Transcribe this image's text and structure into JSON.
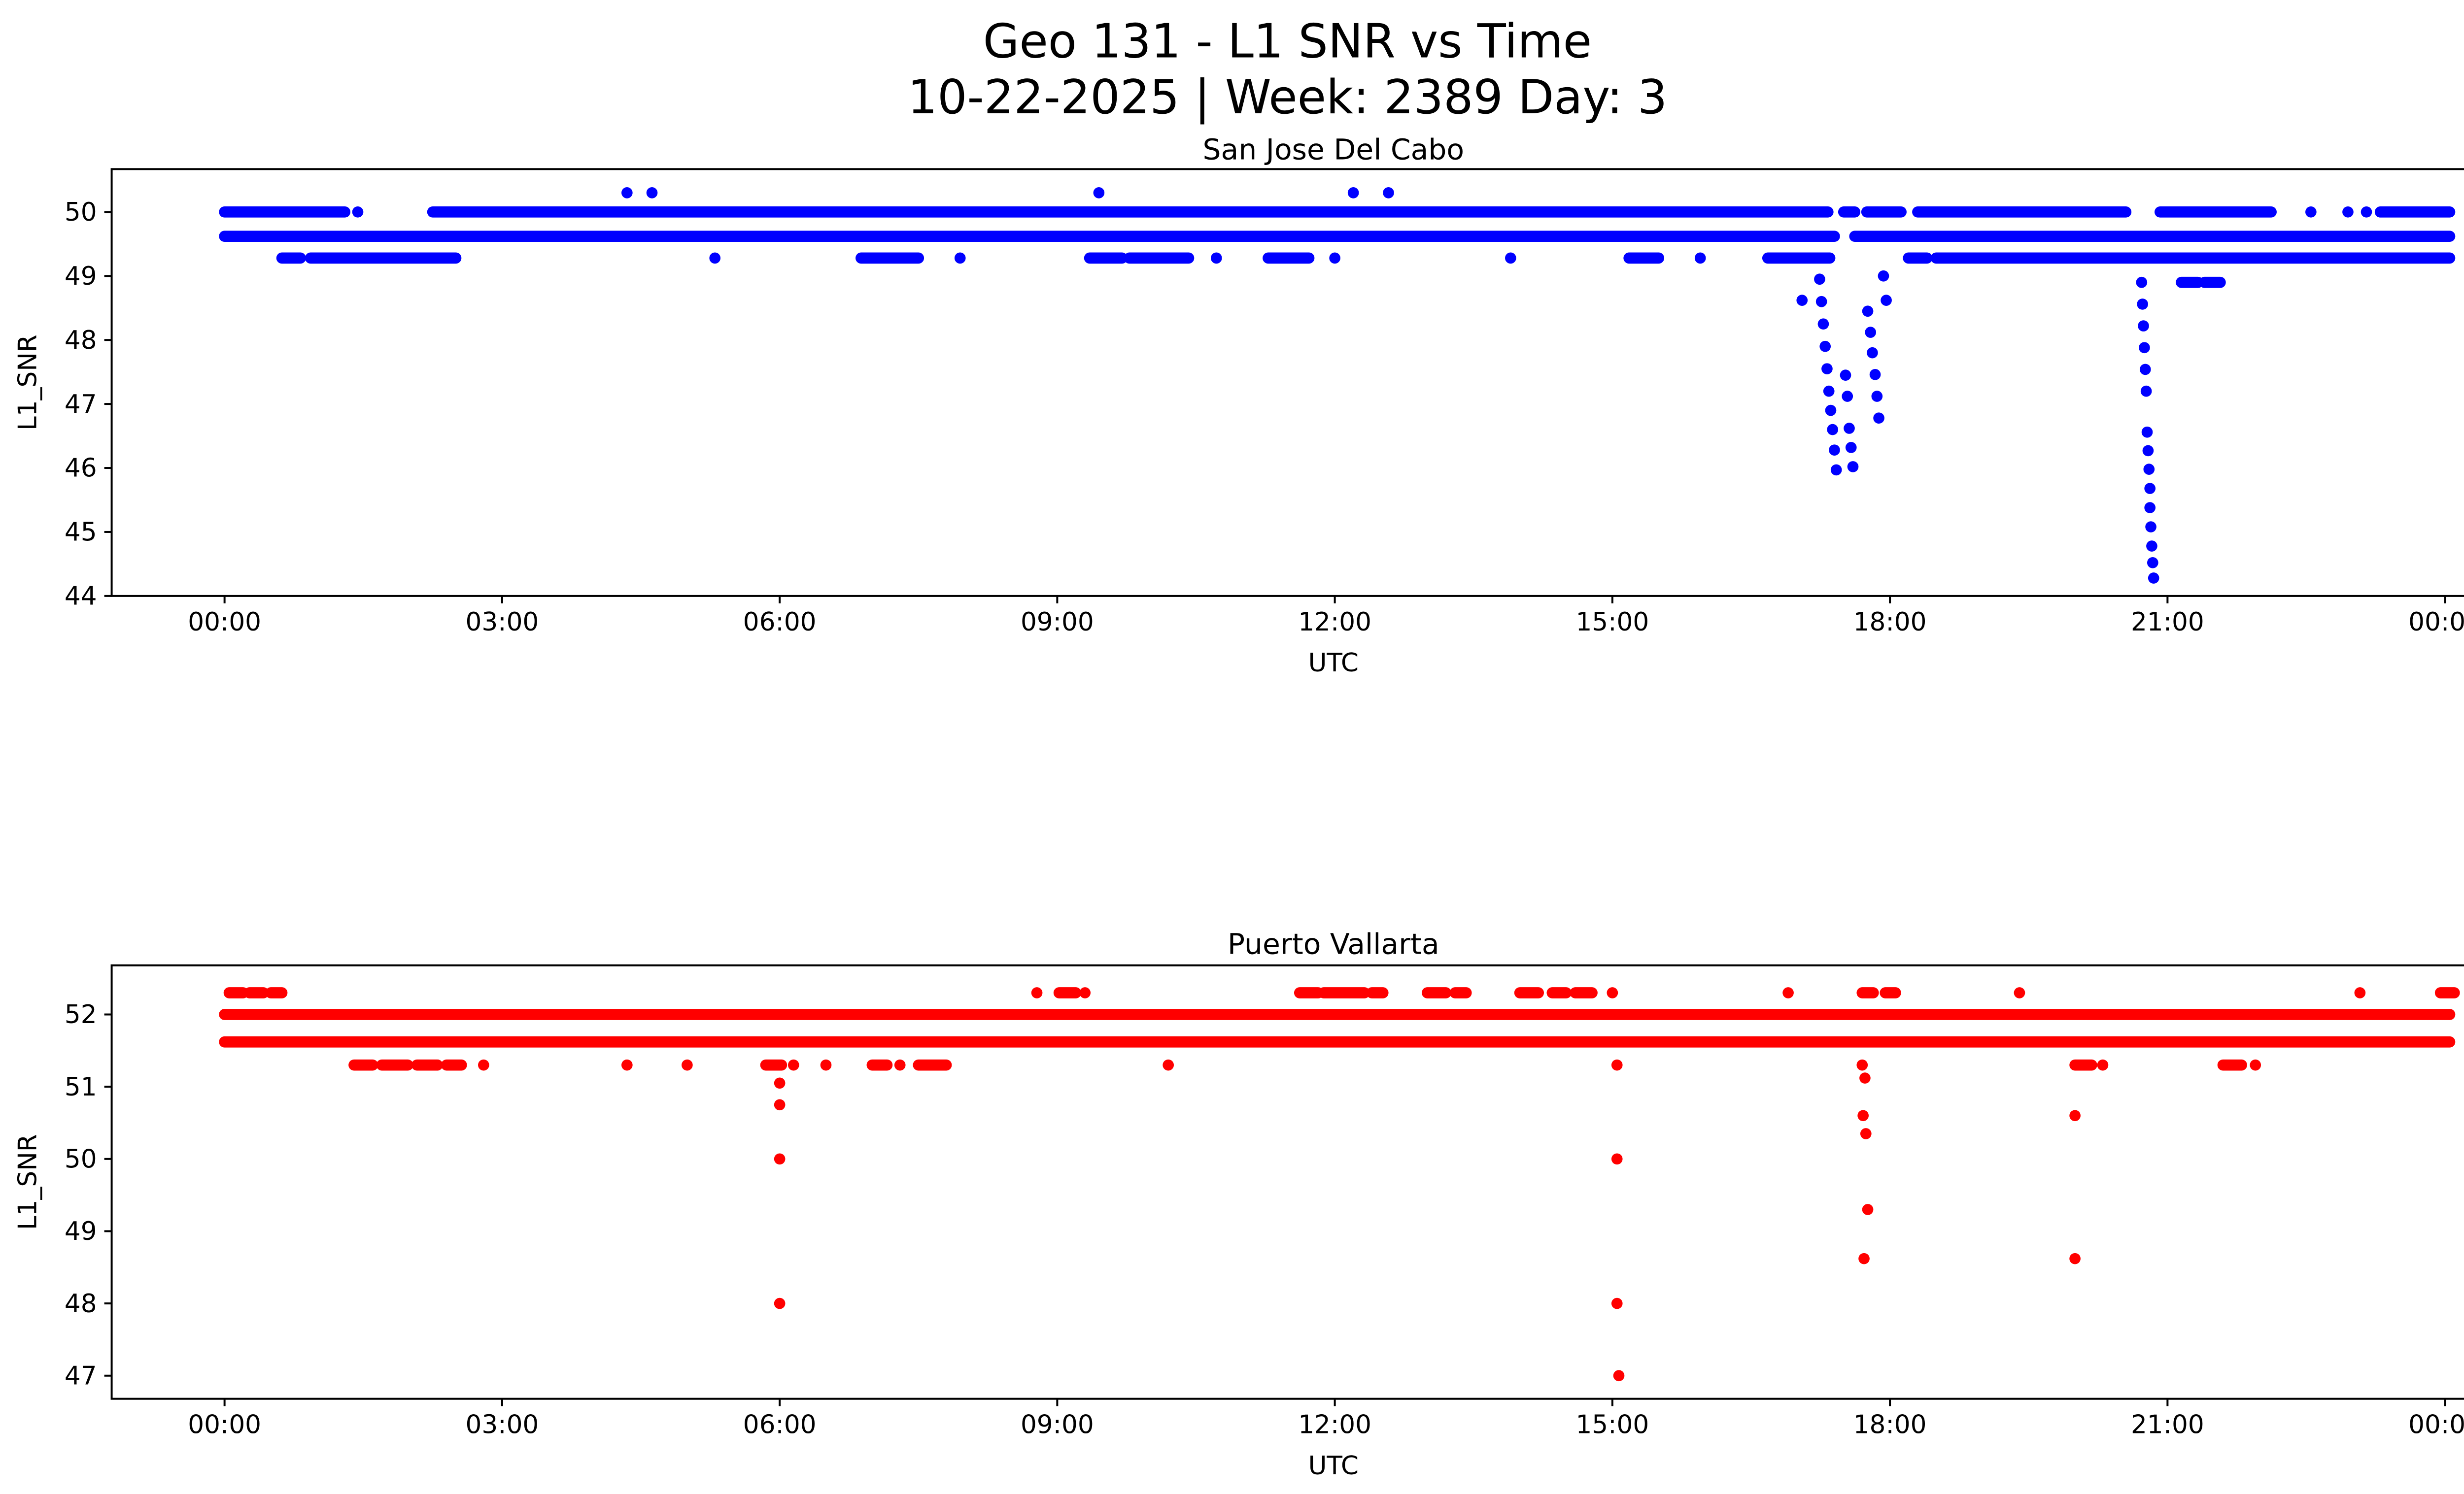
{
  "title": "Geo 131 - L1 SNR vs Time",
  "subtitle": "10-22-2025 | Week: 2389 Day: 3",
  "style": {
    "background": "#ffffff",
    "text_color": "#000000"
  },
  "chart_data": [
    {
      "type": "scatter",
      "title": "San Jose Del Cabo",
      "xlabel": "UTC",
      "ylabel": "L1_SNR",
      "color": "#0000FF",
      "marker_radius": 3.4,
      "grid": false,
      "xlim": [
        -1.22,
        25.19
      ],
      "ylim": [
        44.0,
        50.67
      ],
      "xticks": [
        0,
        3,
        6,
        9,
        12,
        15,
        18,
        21,
        24
      ],
      "xtick_labels": [
        "00:00",
        "03:00",
        "06:00",
        "09:00",
        "12:00",
        "15:00",
        "18:00",
        "21:00",
        "00:00"
      ],
      "yticks": [
        44,
        45,
        46,
        47,
        48,
        49,
        50
      ],
      "ytick_labels": [
        "44",
        "45",
        "46",
        "47",
        "48",
        "49",
        "50"
      ],
      "bands": [
        {
          "y": 50.0,
          "segments": [
            [
              0.0,
              1.3
            ],
            [
              2.25,
              17.33
            ],
            [
              17.5,
              17.62
            ],
            [
              17.75,
              18.12
            ],
            [
              18.3,
              20.55
            ],
            [
              20.92,
              22.12
            ],
            [
              23.3,
              24.05
            ]
          ]
        },
        {
          "y": 49.62,
          "segments": [
            [
              0.0,
              17.4
            ],
            [
              17.62,
              24.05
            ]
          ]
        },
        {
          "y": 49.28,
          "segments": [
            [
              0.62,
              0.82
            ],
            [
              0.93,
              2.5
            ],
            [
              6.88,
              7.5
            ],
            [
              9.35,
              9.7
            ],
            [
              9.78,
              10.42
            ],
            [
              11.28,
              11.72
            ],
            [
              15.18,
              15.5
            ],
            [
              16.68,
              17.35
            ],
            [
              18.2,
              18.4
            ],
            [
              18.5,
              24.05
            ]
          ]
        },
        {
          "y": 48.9,
          "segments": [
            [
              21.15,
              21.33
            ],
            [
              21.4,
              21.57
            ]
          ]
        }
      ],
      "points": [
        [
          1.44,
          50.0
        ],
        [
          22.55,
          50.0
        ],
        [
          22.95,
          50.0
        ],
        [
          23.15,
          50.0
        ],
        [
          4.35,
          50.3
        ],
        [
          4.62,
          50.3
        ],
        [
          9.45,
          50.3
        ],
        [
          12.2,
          50.3
        ],
        [
          12.58,
          50.3
        ],
        [
          5.3,
          49.28
        ],
        [
          7.95,
          49.28
        ],
        [
          10.72,
          49.28
        ],
        [
          12.0,
          49.28
        ],
        [
          13.9,
          49.28
        ],
        [
          15.95,
          49.28
        ],
        [
          17.05,
          48.62
        ],
        [
          17.24,
          48.95
        ],
        [
          17.26,
          48.6
        ],
        [
          17.28,
          48.25
        ],
        [
          17.3,
          47.9
        ],
        [
          17.32,
          47.55
        ],
        [
          17.34,
          47.2
        ],
        [
          17.36,
          46.9
        ],
        [
          17.38,
          46.6
        ],
        [
          17.4,
          46.28
        ],
        [
          17.42,
          45.97
        ],
        [
          17.52,
          47.45
        ],
        [
          17.54,
          47.12
        ],
        [
          17.56,
          46.62
        ],
        [
          17.58,
          46.32
        ],
        [
          17.6,
          46.02
        ],
        [
          17.76,
          48.45
        ],
        [
          17.79,
          48.12
        ],
        [
          17.81,
          47.8
        ],
        [
          17.84,
          47.46
        ],
        [
          17.86,
          47.12
        ],
        [
          17.88,
          46.78
        ],
        [
          17.93,
          49.0
        ],
        [
          17.96,
          48.62
        ],
        [
          20.72,
          48.9
        ],
        [
          20.73,
          48.56
        ],
        [
          20.74,
          48.22
        ],
        [
          20.75,
          47.88
        ],
        [
          20.76,
          47.54
        ],
        [
          20.77,
          47.2
        ],
        [
          20.78,
          46.56
        ],
        [
          20.79,
          46.27
        ],
        [
          20.8,
          45.98
        ],
        [
          20.81,
          45.68
        ],
        [
          20.81,
          45.38
        ],
        [
          20.82,
          45.08
        ],
        [
          20.83,
          44.78
        ],
        [
          20.84,
          44.52
        ],
        [
          20.85,
          44.28
        ]
      ]
    },
    {
      "type": "scatter",
      "title": "Puerto Vallarta",
      "xlabel": "UTC",
      "ylabel": "L1_SNR",
      "color": "#FF0000",
      "marker_radius": 3.4,
      "grid": false,
      "xlim": [
        -1.22,
        25.19
      ],
      "ylim": [
        46.68,
        52.68
      ],
      "xticks": [
        0,
        3,
        6,
        9,
        12,
        15,
        18,
        21,
        24
      ],
      "xtick_labels": [
        "00:00",
        "03:00",
        "06:00",
        "09:00",
        "12:00",
        "15:00",
        "18:00",
        "21:00",
        "00:00"
      ],
      "yticks": [
        47,
        48,
        49,
        50,
        51,
        52
      ],
      "ytick_labels": [
        "47",
        "48",
        "49",
        "50",
        "51",
        "52"
      ],
      "bands": [
        {
          "y": 52.0,
          "segments": [
            [
              0.0,
              24.05
            ]
          ]
        },
        {
          "y": 51.62,
          "segments": [
            [
              0.0,
              24.05
            ]
          ]
        },
        {
          "y": 52.3,
          "segments": [
            [
              0.05,
              0.2
            ],
            [
              0.27,
              0.42
            ],
            [
              0.5,
              0.62
            ],
            [
              9.02,
              9.2
            ],
            [
              11.62,
              11.82
            ],
            [
              11.88,
              12.32
            ],
            [
              12.4,
              12.52
            ],
            [
              13.0,
              13.2
            ],
            [
              13.3,
              13.42
            ],
            [
              14.0,
              14.2
            ],
            [
              14.35,
              14.5
            ],
            [
              14.6,
              14.78
            ],
            [
              17.7,
              17.82
            ],
            [
              17.95,
              18.06
            ],
            [
              23.95,
              24.1
            ]
          ]
        },
        {
          "y": 51.3,
          "segments": [
            [
              1.4,
              1.6
            ],
            [
              1.7,
              1.98
            ],
            [
              2.08,
              2.3
            ],
            [
              2.4,
              2.56
            ],
            [
              5.85,
              6.02
            ],
            [
              7.0,
              7.16
            ],
            [
              7.5,
              7.8
            ],
            [
              20.0,
              20.18
            ],
            [
              21.6,
              21.8
            ]
          ]
        }
      ],
      "points": [
        [
          8.78,
          52.3
        ],
        [
          9.3,
          52.3
        ],
        [
          15.0,
          52.3
        ],
        [
          16.9,
          52.3
        ],
        [
          19.4,
          52.3
        ],
        [
          23.08,
          52.3
        ],
        [
          2.8,
          51.3
        ],
        [
          4.35,
          51.3
        ],
        [
          5.0,
          51.3
        ],
        [
          6.15,
          51.3
        ],
        [
          6.5,
          51.3
        ],
        [
          7.3,
          51.3
        ],
        [
          10.2,
          51.3
        ],
        [
          15.05,
          51.3
        ],
        [
          17.7,
          51.3
        ],
        [
          20.3,
          51.3
        ],
        [
          21.95,
          51.3
        ],
        [
          6.0,
          51.05
        ],
        [
          6.0,
          50.75
        ],
        [
          6.0,
          50.0
        ],
        [
          6.0,
          48.0
        ],
        [
          15.05,
          50.0
        ],
        [
          15.05,
          48.0
        ],
        [
          15.07,
          47.0
        ],
        [
          17.73,
          51.12
        ],
        [
          17.71,
          50.6
        ],
        [
          17.74,
          50.35
        ],
        [
          17.76,
          49.3
        ],
        [
          17.72,
          48.62
        ],
        [
          20.0,
          50.6
        ],
        [
          20.0,
          48.62
        ]
      ]
    }
  ]
}
